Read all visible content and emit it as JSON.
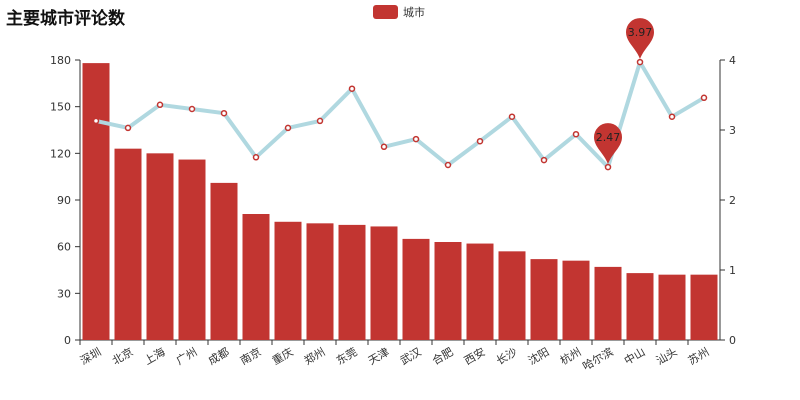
{
  "chart_data": {
    "type": "bar",
    "title": "主要城市评论数",
    "categories": [
      "深圳",
      "北京",
      "上海",
      "广州",
      "成都",
      "南京",
      "重庆",
      "郑州",
      "东莞",
      "天津",
      "武汉",
      "合肥",
      "西安",
      "长沙",
      "沈阳",
      "杭州",
      "哈尔滨",
      "中山",
      "汕头",
      "苏州"
    ],
    "series": [
      {
        "name": "城市",
        "type": "bar",
        "axis": "left",
        "color": "#c23531",
        "values": [
          178,
          123,
          120,
          116,
          101,
          81,
          76,
          75,
          74,
          73,
          65,
          63,
          62,
          57,
          52,
          51,
          47,
          43,
          42,
          42
        ]
      },
      {
        "type": "line",
        "axis": "right",
        "color": "#b0d8e0",
        "values": [
          3.13,
          3.03,
          3.36,
          3.3,
          3.24,
          2.61,
          3.03,
          3.13,
          3.59,
          2.76,
          2.87,
          2.5,
          2.84,
          3.19,
          2.57,
          2.94,
          2.47,
          3.97,
          3.19,
          3.46
        ]
      }
    ],
    "markpoints": [
      {
        "label": "2.47",
        "category": "哈尔滨"
      },
      {
        "label": "3.97",
        "category": "中山"
      }
    ],
    "yaxis_left": {
      "range": [
        0,
        180
      ],
      "ticks": [
        0,
        30,
        60,
        90,
        120,
        150,
        180
      ]
    },
    "yaxis_right": {
      "range": [
        0,
        4
      ],
      "ticks": [
        0,
        1,
        2,
        3,
        4
      ]
    },
    "legend": {
      "entries": [
        "城市"
      ],
      "placement": "top-center"
    },
    "grid": false
  }
}
